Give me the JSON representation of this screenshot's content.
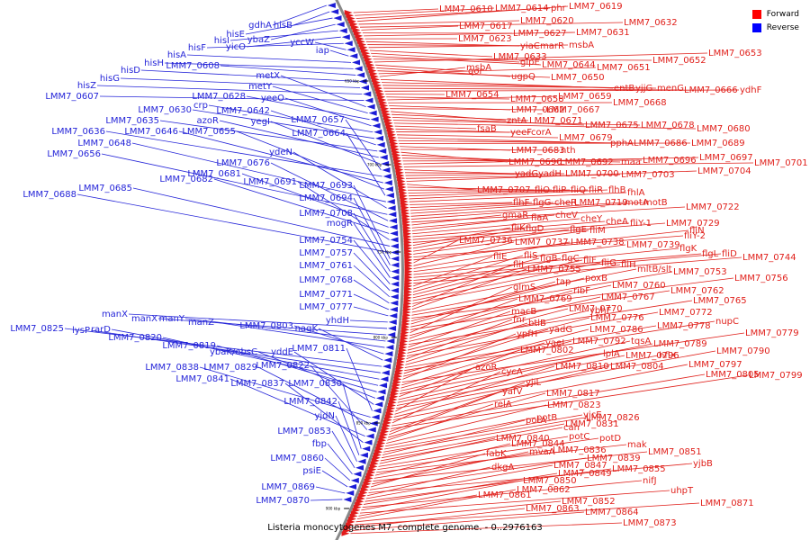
{
  "title": "Listeria monocytogenes M7, complete genome. - 0..2976163",
  "legend": [
    {
      "label": "Forward",
      "color": "#ff0000"
    },
    {
      "label": "Reverse",
      "color": "#0000ff"
    }
  ],
  "tick_labels": [
    "650 kbp",
    "700 kbp",
    "750 kbp",
    "800 kbp",
    "850 kbp",
    "900 kbp"
  ],
  "forward_genes": [
    "LMM7_0610",
    "LMM7_0614",
    "phr",
    "LMM7_0619",
    "LMM7_0620",
    "LMM7_0632",
    "LMM7_0617",
    "LMM7_0627",
    "LMM7_0631",
    "LMM7_0623",
    "yiaC",
    "marR",
    "msbA",
    "LMM7_0633",
    "glpE",
    "LMM7_0644",
    "LMM7_0652",
    "LMM7_0653",
    "qor",
    "ugpQ",
    "LMM7_0650",
    "LMM7_0651",
    "msbA",
    "entB",
    "yjjG",
    "menG",
    "LMM7_0666",
    "ydhF",
    "LMM7_0654",
    "LMM7_0658",
    "LMM7_0659",
    "LMM7_0668",
    "LMM7_0662",
    "LMM7_0667",
    "zntA",
    "LMM7_0671",
    "LMM7_0675",
    "LMM7_0678",
    "LMM7_0680",
    "fsaB",
    "yeeF",
    "corA",
    "LMM7_0679",
    "pphA",
    "LMM7_0686",
    "LMM7_0689",
    "LMM7_0683",
    "nth",
    "LMM7_0690",
    "LMM7_0692",
    "maa",
    "LMM7_0696",
    "LMM7_0697",
    "LMM7_0701",
    "yadG",
    "yadH",
    "LMM7_0700",
    "LMM7_0703",
    "LMM7_0704",
    "LMM7_0707",
    "fliO",
    "fliP",
    "fliQ",
    "fliR",
    "flhB",
    "fhlA",
    "flhF",
    "flgG",
    "cheR",
    "LMM7_0719",
    "motA",
    "motB",
    "LMM7_0722",
    "gmaR",
    "flaA",
    "cheV",
    "cheY",
    "cheA",
    "fliY-1",
    "LMM7_0729",
    "fliK",
    "flgD",
    "flgE",
    "fliM",
    "fliY-2",
    "fliN",
    "LMM7_0736",
    "LMM7_0737",
    "LMM7_0738",
    "LMM7_0739",
    "flgK",
    "flgL",
    "fliD",
    "LMM7_0744",
    "fliE",
    "fliS",
    "flgB",
    "flgC",
    "fliF",
    "fliG",
    "fliH",
    "fliI",
    "LMM7_0755",
    "mltB/slt",
    "LMM7_0753",
    "LMM7_0756",
    "poxB",
    "tap",
    "LMM7_0760",
    "LMM7_0762",
    "glmS",
    "ribF",
    "LMM7_0769",
    "LMM7_0767",
    "LMM7_0765",
    "macB",
    "LMM7_0770",
    "ybhF",
    "LMM7_0772",
    "fnr",
    "btlB",
    "LMM7_0776",
    "LMM7_0778",
    "nupC",
    "yadG",
    "LMM7_0786",
    "ypfH",
    "LMM7_0779",
    "yaeI",
    "LMM7_0792",
    "tqsA",
    "LMM7_0789",
    "LMM7_0802",
    "lplA",
    "LMM7_0796",
    "hflX",
    "LMM7_0790",
    "azoR",
    "LMM7_0810",
    "LMM7_0804",
    "LMM7_0797",
    "cycA",
    "LMM7_0805",
    "LMM7_0799",
    "yjiL",
    "yafV",
    "LMM7_0817",
    "relA",
    "LMM7_0823",
    "potB",
    "yjcE",
    "LMM7_0826",
    "potA",
    "LMM7_0831",
    "cah",
    "LMM7_0840",
    "potC",
    "potD",
    "mak",
    "LMM7_0844",
    "LMM7_0836",
    "LMM7_0851",
    "mvaA",
    "fabK",
    "LMM7_0839",
    "yjbB",
    "dkgA",
    "LMM7_0847",
    "LMM7_0855",
    "LMM7_0849",
    "nifJ",
    "LMM7_0850",
    "uhpT",
    "LMM7_0861",
    "LMM7_0862",
    "LMM7_0852",
    "LMM7_0871",
    "LMM7_0863",
    "LMM7_0864",
    "LMM7_0873"
  ],
  "reverse_genes": [
    "gdhA",
    "hisB",
    "hisE",
    "ybaZ",
    "hisI",
    "yicO",
    "hisF",
    "yccW",
    "iap",
    "hisA",
    "hisH",
    "LMM7_0608",
    "hisD",
    "hisG",
    "hisZ",
    "LMM7_0607",
    "metX",
    "metY",
    "LMM7_0628",
    "yeeO",
    "crp",
    "LMM7_0630",
    "LMM7_0642",
    "LMM7_0635",
    "azoR",
    "yegI",
    "LMM7_0657",
    "LMM7_0636",
    "LMM7_0646",
    "LMM7_0655",
    "LMM7_0664",
    "LMM7_0648",
    "ydeN",
    "LMM7_0656",
    "LMM7_0676",
    "LMM7_0681",
    "LMM7_0682",
    "LMM7_0691",
    "LMM7_0685",
    "LMM7_0688",
    "LMM7_0693",
    "LMM7_0694",
    "LMM7_0708",
    "mogR",
    "LMM7_0754",
    "LMM7_0757",
    "LMM7_0761",
    "LMM7_0768",
    "LMM7_0771",
    "LMM7_0777",
    "yhdH",
    "manX",
    "manX",
    "manY",
    "manZ",
    "LMM7_0803",
    "nagK",
    "LMM7_0825",
    "lysP",
    "rarD",
    "LMM7_0820",
    "LMM7_0819",
    "ybaK/ebsC",
    "yddE",
    "LMM7_0811",
    "LMM7_0838",
    "LMM7_0829",
    "LMM7_0822",
    "LMM7_0841",
    "LMM7_0837",
    "LMM7_0830",
    "LMM7_0842",
    "yjdN",
    "LMM7_0853",
    "fbp",
    "LMM7_0860",
    "psiE",
    "LMM7_0869",
    "LMM7_0870"
  ]
}
